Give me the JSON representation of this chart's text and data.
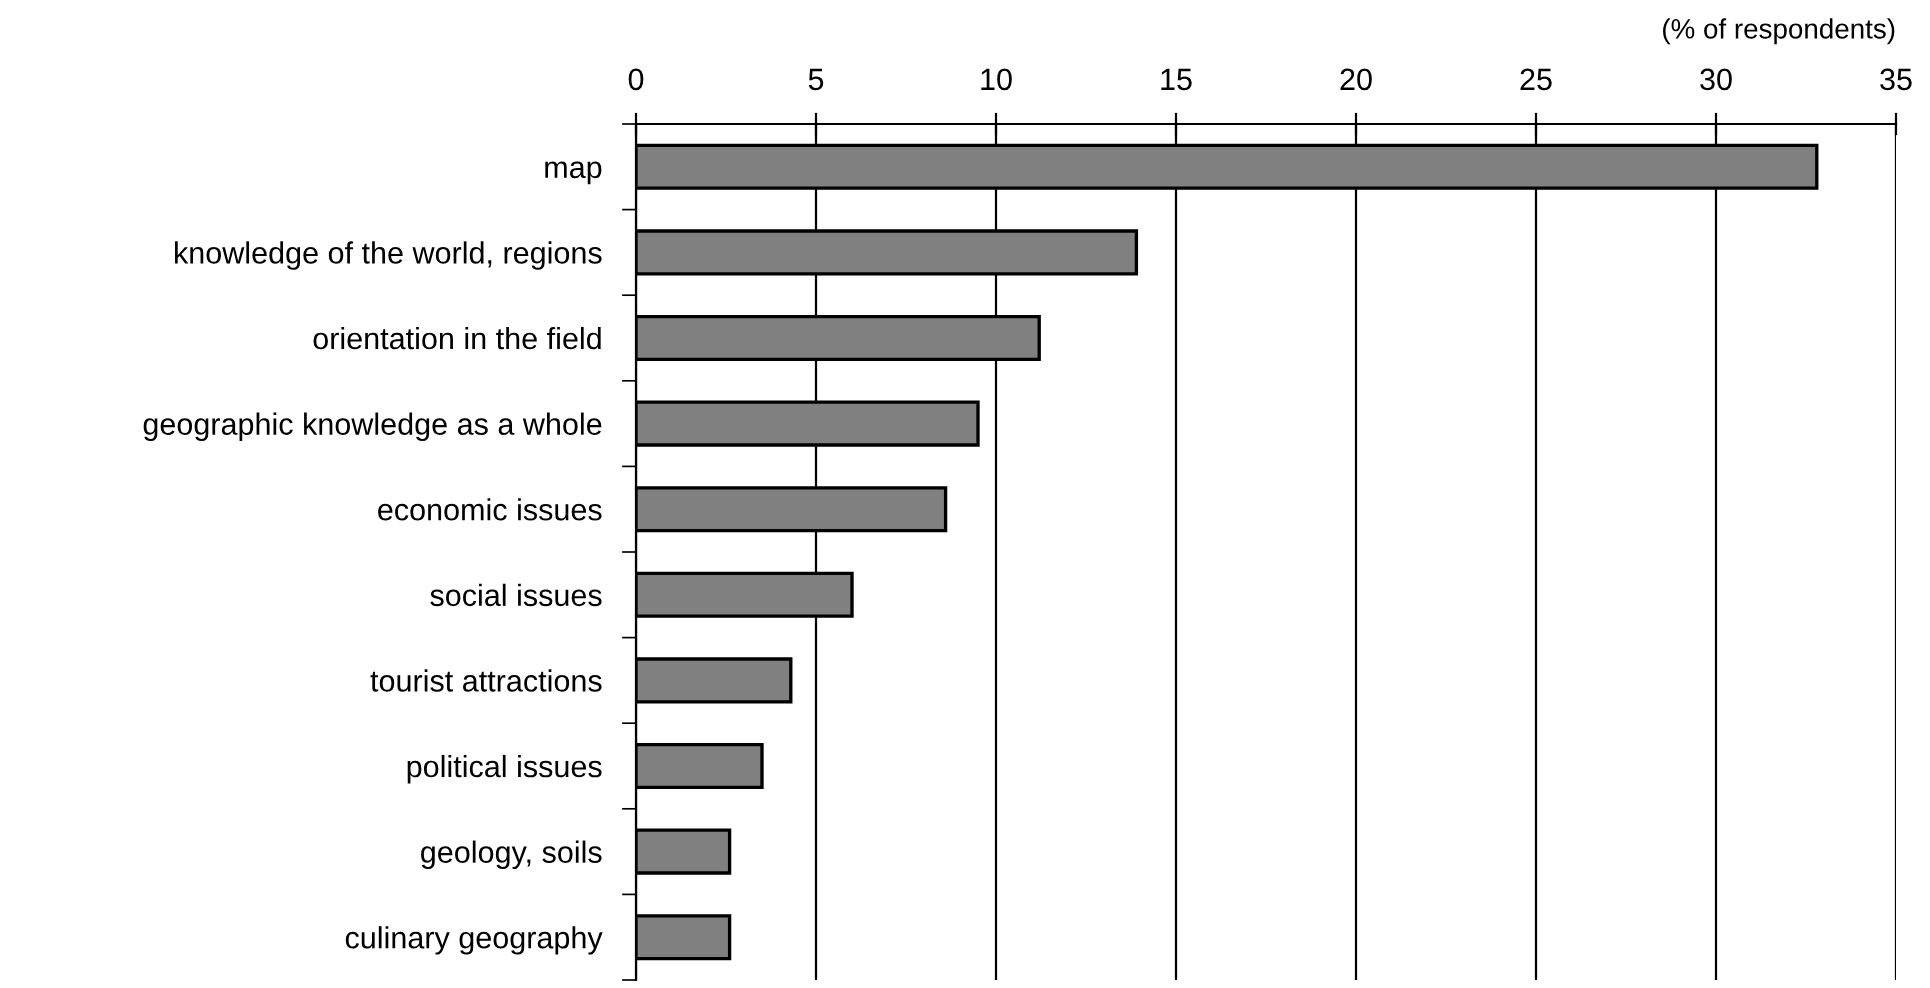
{
  "chart_data": {
    "type": "bar",
    "orientation": "horizontal",
    "xlabel": "(% of respondents)",
    "categories": [
      "map",
      "knowledge of the world, regions",
      "orientation in the field",
      "geographic knowledge as a whole",
      "economic issues",
      "social issues",
      "tourist attractions",
      "political issues",
      "geology, soils",
      "culinary geography"
    ],
    "values": [
      32.8,
      13.9,
      11.2,
      9.5,
      8.6,
      6.0,
      4.3,
      3.5,
      2.6,
      2.6
    ],
    "color": "#808080",
    "xlim": [
      0,
      35
    ],
    "xticks": [
      0,
      5,
      10,
      15,
      20,
      25,
      30,
      35
    ],
    "grid": "x"
  }
}
